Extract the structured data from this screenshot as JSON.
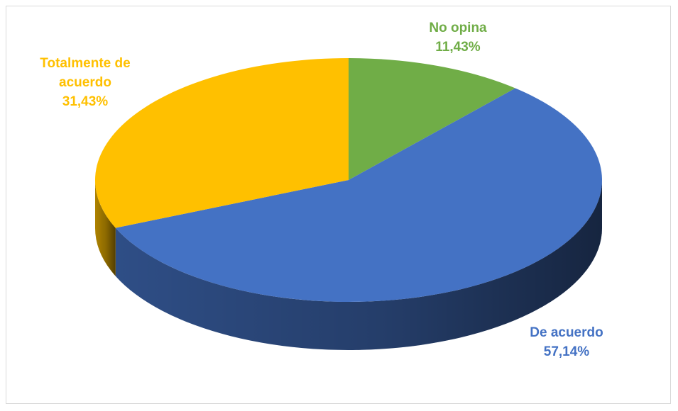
{
  "chart_data": {
    "type": "pie",
    "categories": [
      "No opina",
      "De acuerdo",
      "Totalmente de acuerdo"
    ],
    "values": [
      11.43,
      57.14,
      31.43
    ],
    "colors": [
      "#70AD47",
      "#4472C4",
      "#FFC000"
    ],
    "slices": [
      {
        "name": "No opina",
        "label_lines": [
          "No opina"
        ],
        "pct_text": "11,43%",
        "value": 11.43,
        "color": "#70AD47"
      },
      {
        "name": "De acuerdo",
        "label_lines": [
          "De acuerdo"
        ],
        "pct_text": "57,14%",
        "value": 57.14,
        "color": "#4472C4"
      },
      {
        "name": "Totalmente de acuerdo",
        "label_lines": [
          "Totalmente de",
          "acuerdo"
        ],
        "pct_text": "31,43%",
        "value": 31.43,
        "color": "#FFC000"
      }
    ],
    "style": "3d",
    "title": "",
    "legend": "none"
  }
}
